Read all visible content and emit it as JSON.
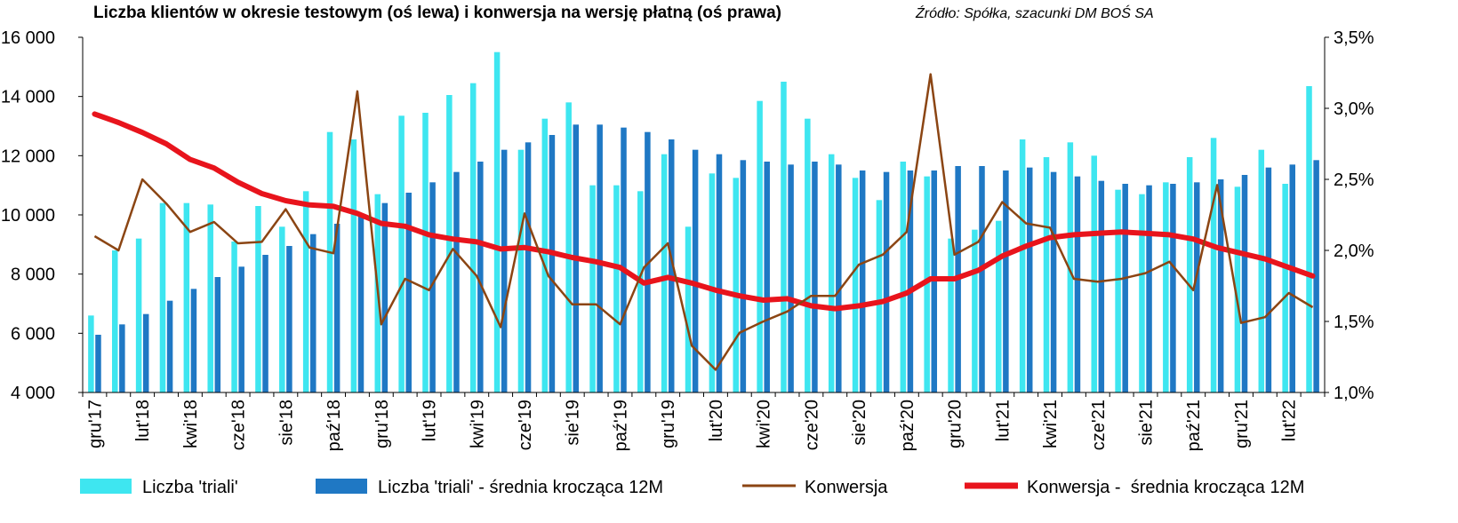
{
  "chart_data": {
    "type": "bar",
    "title": "Liczba klientów w okresie testowym (oś lewa) i konwersja na wersję płatną (oś prawa)",
    "source": "Źródło: Spółka, szacunki DM BOŚ SA",
    "y_left": {
      "ylim": [
        4000,
        16000
      ],
      "ticks": [
        "4 000",
        "6 000",
        "8 000",
        "10 000",
        "12 000",
        "14 000",
        "16 000"
      ]
    },
    "y_right": {
      "ylim": [
        1.0,
        3.5
      ],
      "ticks": [
        "1,0%",
        "1,5%",
        "2,0%",
        "2,5%",
        "3,0%",
        "3,5%"
      ]
    },
    "x_labels": [
      "gru'17",
      "lut'18",
      "kwi'18",
      "cze'18",
      "sie'18",
      "paź'18",
      "gru'18",
      "lut'19",
      "kwi'19",
      "cze'19",
      "sie'19",
      "paź'19",
      "gru'19",
      "lut'20",
      "kwi'20",
      "cze'20",
      "sie'20",
      "paź'20",
      "gru'20",
      "lut'21",
      "kwi'21",
      "cze'21",
      "sie'21",
      "paź'21",
      "gru'21",
      "lut'22"
    ],
    "series": [
      {
        "name": "Liczba 'triali'",
        "type": "bar",
        "axis": "left",
        "color": "#3ee6f0",
        "values": [
          6600,
          8800,
          9200,
          10400,
          10400,
          10350,
          9100,
          10300,
          9600,
          10800,
          12800,
          12550,
          10700,
          13350,
          13450,
          14050,
          14450,
          15500,
          12200,
          13250,
          13800,
          11000,
          11000,
          10800,
          12050,
          9600,
          11400,
          11250,
          13850,
          14500,
          13250,
          12050,
          11250,
          10500,
          11800,
          11300,
          9200,
          9500,
          9800,
          12550,
          11950,
          12450,
          12000,
          10850,
          10700,
          11100,
          11950,
          12600,
          10950,
          12200,
          11050,
          14350
        ]
      },
      {
        "name": "Liczba 'triali' - średnia krocząca 12M",
        "type": "bar",
        "axis": "left",
        "color": "#1f78c4",
        "values": [
          5950,
          6300,
          6650,
          7100,
          7500,
          7900,
          8250,
          8650,
          8950,
          9350,
          9700,
          10050,
          10400,
          10750,
          11100,
          11450,
          11800,
          12200,
          12450,
          12700,
          13050,
          13050,
          12950,
          12800,
          12550,
          12200,
          12050,
          11850,
          11800,
          11700,
          11800,
          11700,
          11500,
          11450,
          11500,
          11500,
          11650,
          11650,
          11500,
          11600,
          11450,
          11300,
          11150,
          11050,
          11000,
          11050,
          11100,
          11200,
          11350,
          11600,
          11700,
          11850
        ]
      },
      {
        "name": "Konwersja",
        "type": "line",
        "axis": "right",
        "color": "#8b4513",
        "values": [
          2.1,
          2.0,
          2.5,
          2.33,
          2.13,
          2.2,
          2.05,
          2.06,
          2.29,
          2.02,
          1.98,
          3.12,
          1.48,
          1.8,
          1.72,
          2.01,
          1.82,
          1.46,
          2.26,
          1.82,
          1.62,
          1.62,
          1.48,
          1.88,
          2.05,
          1.33,
          1.16,
          1.42,
          1.5,
          1.57,
          1.68,
          1.68,
          1.9,
          1.97,
          2.13,
          3.24,
          1.97,
          2.06,
          2.34,
          2.19,
          2.16,
          1.8,
          1.78,
          1.8,
          1.84,
          1.92,
          1.72,
          2.46,
          1.49,
          1.53,
          1.7,
          1.6
        ]
      },
      {
        "name": "Konwersja -  średnia krocząca 12M",
        "type": "line",
        "axis": "right",
        "color": "#e8141c",
        "values": [
          2.96,
          2.9,
          2.83,
          2.75,
          2.64,
          2.58,
          2.48,
          2.4,
          2.35,
          2.32,
          2.31,
          2.26,
          2.19,
          2.17,
          2.11,
          2.08,
          2.06,
          2.01,
          2.02,
          1.99,
          1.95,
          1.92,
          1.88,
          1.77,
          1.81,
          1.77,
          1.72,
          1.68,
          1.65,
          1.66,
          1.61,
          1.59,
          1.61,
          1.64,
          1.7,
          1.8,
          1.8,
          1.86,
          1.96,
          2.03,
          2.09,
          2.11,
          2.12,
          2.13,
          2.12,
          2.11,
          2.08,
          2.02,
          1.98,
          1.94,
          1.88,
          1.82
        ]
      }
    ],
    "legend_position": "bottom",
    "grid": false
  }
}
